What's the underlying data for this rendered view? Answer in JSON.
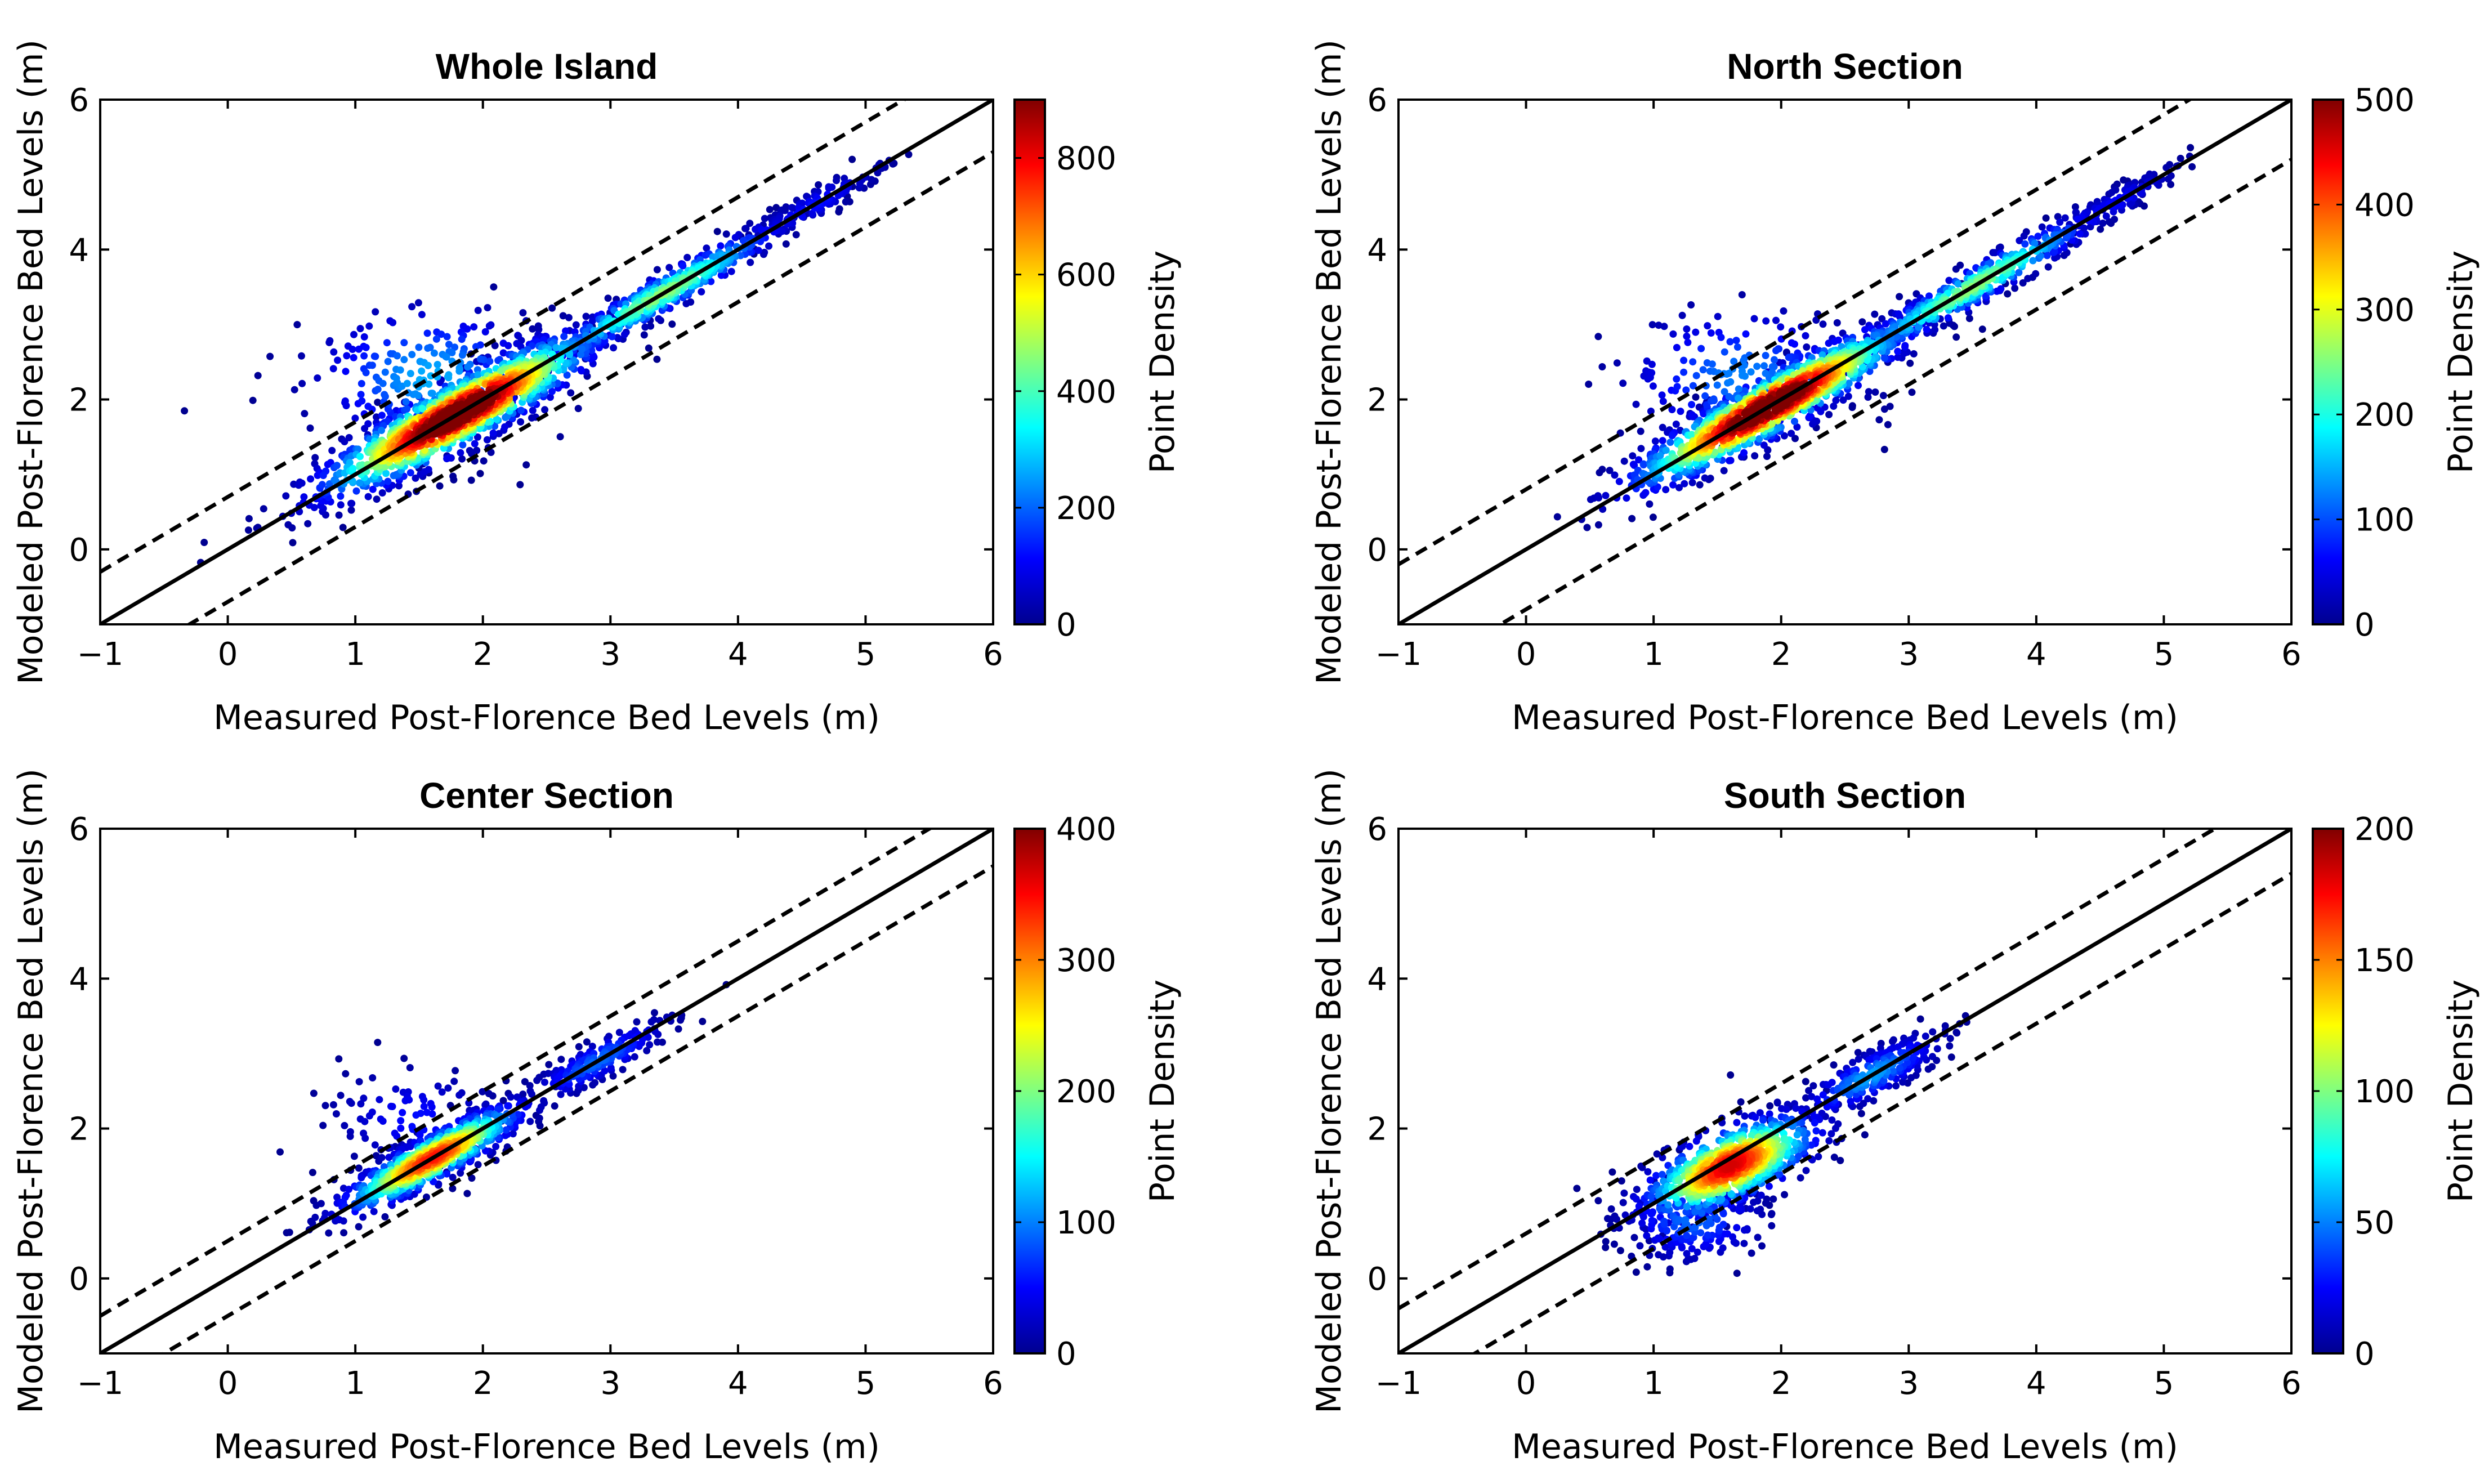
{
  "colormap": [
    "#00008f",
    "#0000ff",
    "#0080ff",
    "#00ffff",
    "#80ff80",
    "#ffff00",
    "#ff8000",
    "#ff0000",
    "#800000"
  ],
  "line_style": {
    "one_to_one": "solid",
    "bounds": "dashed"
  },
  "chart_data": [
    {
      "type": "scatter",
      "title": "Whole Island",
      "xlabel": "Measured Post-Florence Bed Levels (m)",
      "ylabel": "Modeled Post-Florence Bed Levels (m)",
      "xlim": [
        -1,
        6
      ],
      "ylim": [
        -1,
        6
      ],
      "xticks": [
        "−1",
        "0",
        "1",
        "2",
        "3",
        "4",
        "5",
        "6"
      ],
      "yticks": [
        "0",
        "2",
        "4",
        "6"
      ],
      "reference_lines": {
        "one_to_one": {
          "slope": 1,
          "intercept": 0
        },
        "upper_offset": 0.7,
        "lower_offset": -0.7
      },
      "colorbar": {
        "label": "Point Density",
        "min": 0,
        "max": 900,
        "ticks": [
          "0",
          "200",
          "400",
          "600",
          "800"
        ]
      },
      "clusters": [
        {
          "cx": 1.8,
          "cy": 1.8,
          "spread_along": 0.75,
          "spread_across": 0.17,
          "n": 1300
        },
        {
          "cx": 3.4,
          "cy": 3.4,
          "spread_along": 0.7,
          "spread_across": 0.1,
          "n": 450
        },
        {
          "cx": 1.6,
          "cy": 2.3,
          "spread_along": 0.5,
          "spread_across": 0.5,
          "n": 260
        },
        {
          "cx": 4.6,
          "cy": 4.6,
          "spread_along": 0.4,
          "spread_across": 0.08,
          "n": 120
        }
      ]
    },
    {
      "type": "scatter",
      "title": "North Section",
      "xlabel": "Measured Post-Florence Bed Levels (m)",
      "ylabel": "Modeled Post-Florence Bed Levels (m)",
      "xlim": [
        -1,
        6
      ],
      "ylim": [
        -1,
        6
      ],
      "xticks": [
        "−1",
        "0",
        "1",
        "2",
        "3",
        "4",
        "5",
        "6"
      ],
      "yticks": [
        "0",
        "2",
        "4",
        "6"
      ],
      "reference_lines": {
        "one_to_one": {
          "slope": 1,
          "intercept": 0
        },
        "upper_offset": 0.8,
        "lower_offset": -0.8
      },
      "colorbar": {
        "label": "Point Density",
        "min": 0,
        "max": 500,
        "ticks": [
          "0",
          "100",
          "200",
          "300",
          "400",
          "500"
        ]
      },
      "clusters": [
        {
          "cx": 1.9,
          "cy": 1.9,
          "spread_along": 0.75,
          "spread_across": 0.15,
          "n": 1200
        },
        {
          "cx": 3.5,
          "cy": 3.5,
          "spread_along": 0.75,
          "spread_across": 0.1,
          "n": 450
        },
        {
          "cx": 1.7,
          "cy": 2.3,
          "spread_along": 0.5,
          "spread_across": 0.5,
          "n": 220
        },
        {
          "cx": 4.6,
          "cy": 4.6,
          "spread_along": 0.4,
          "spread_across": 0.08,
          "n": 110
        }
      ]
    },
    {
      "type": "scatter",
      "title": "Center Section",
      "xlabel": "Measured Post-Florence Bed Levels (m)",
      "ylabel": "Modeled Post-Florence Bed Levels (m)",
      "xlim": [
        -1,
        6
      ],
      "ylim": [
        -1,
        6
      ],
      "xticks": [
        "−1",
        "0",
        "1",
        "2",
        "3",
        "4",
        "5",
        "6"
      ],
      "yticks": [
        "0",
        "2",
        "4",
        "6"
      ],
      "reference_lines": {
        "one_to_one": {
          "slope": 1,
          "intercept": 0
        },
        "upper_offset": 0.5,
        "lower_offset": -0.5
      },
      "colorbar": {
        "label": "Point Density",
        "min": 0,
        "max": 400,
        "ticks": [
          "0",
          "100",
          "200",
          "300",
          "400"
        ]
      },
      "clusters": [
        {
          "cx": 1.6,
          "cy": 1.6,
          "spread_along": 0.5,
          "spread_across": 0.12,
          "n": 750
        },
        {
          "cx": 2.9,
          "cy": 2.9,
          "spread_along": 0.4,
          "spread_across": 0.1,
          "n": 200
        },
        {
          "cx": 1.5,
          "cy": 2.1,
          "spread_along": 0.35,
          "spread_across": 0.4,
          "n": 120
        }
      ]
    },
    {
      "type": "scatter",
      "title": "South Section",
      "xlabel": "Measured Post-Florence Bed Levels (m)",
      "ylabel": "Modeled Post-Florence Bed Levels (m)",
      "xlim": [
        -1,
        6
      ],
      "ylim": [
        -1,
        6
      ],
      "xticks": [
        "−1",
        "0",
        "1",
        "2",
        "3",
        "4",
        "5",
        "6"
      ],
      "yticks": [
        "0",
        "2",
        "4",
        "6"
      ],
      "reference_lines": {
        "one_to_one": {
          "slope": 1,
          "intercept": 0
        },
        "upper_offset": 0.6,
        "lower_offset": -0.6
      },
      "colorbar": {
        "label": "Point Density",
        "min": 0,
        "max": 200,
        "ticks": [
          "0",
          "50",
          "100",
          "150",
          "200"
        ]
      },
      "clusters": [
        {
          "cx": 1.6,
          "cy": 1.5,
          "spread_along": 0.45,
          "spread_across": 0.2,
          "n": 800
        },
        {
          "cx": 2.7,
          "cy": 2.7,
          "spread_along": 0.4,
          "spread_across": 0.12,
          "n": 250
        },
        {
          "cx": 1.3,
          "cy": 0.8,
          "spread_along": 0.3,
          "spread_across": 0.3,
          "n": 200
        }
      ]
    }
  ]
}
